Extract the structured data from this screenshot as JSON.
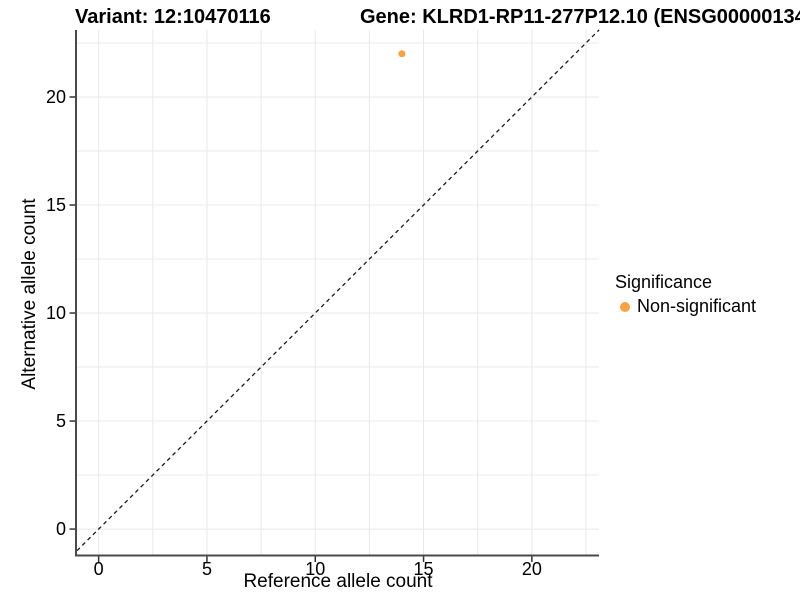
{
  "chart_data": {
    "type": "scatter",
    "title_variant": "Variant: 12:10470116",
    "title_gene": "Gene: KLRD1-RP11-277P12.10 (ENSG00000134",
    "xlabel": "Reference allele count",
    "ylabel": "Alternative allele count",
    "xlim": [
      -1,
      23.1
    ],
    "ylim": [
      -1.2,
      23.1
    ],
    "xticks": [
      0,
      5,
      10,
      15,
      20
    ],
    "yticks": [
      0,
      5,
      10,
      15,
      20
    ],
    "grid_interval": 2.5,
    "grid_min": 0,
    "grid_max": 22.5,
    "points": [
      {
        "x": 14,
        "y": 22,
        "series": "Non-significant"
      }
    ],
    "identity_line": {
      "style": "dashed",
      "slope": 1,
      "intercept": 0,
      "color": "#1A1A1A"
    },
    "legend": {
      "title": "Significance",
      "position": "right",
      "items": [
        {
          "label": "Non-significant",
          "color": "#F9A242"
        }
      ]
    },
    "colors": {
      "point": "#F9A242",
      "grid": "#E8E8E8",
      "axis": "#4A4A4A",
      "tick": "#333333",
      "text": "#000000",
      "background": "#FFFFFF"
    }
  }
}
